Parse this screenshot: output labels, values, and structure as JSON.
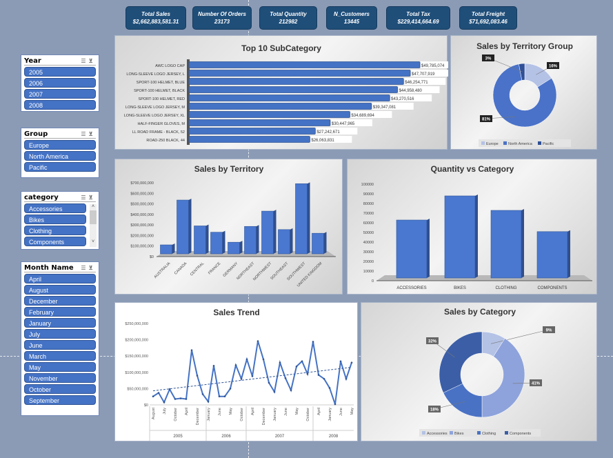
{
  "kpis": [
    {
      "label": "Total Sales",
      "value": "$2,662,883,581.31"
    },
    {
      "label": "Number Of Orders",
      "value": "23173"
    },
    {
      "label": "Total Quantity",
      "value": "212982"
    },
    {
      "label": "N_Customers",
      "value": "13445"
    },
    {
      "label": "Total Tax",
      "value": "$229,414,664.69"
    },
    {
      "label": "Total Freight",
      "value": "$71,692,083.46"
    }
  ],
  "slicers": {
    "year": {
      "title": "Year",
      "items": [
        "2005",
        "2006",
        "2007",
        "2008"
      ]
    },
    "group": {
      "title": "Group",
      "items": [
        "Europe",
        "North America",
        "Pacific"
      ]
    },
    "category": {
      "title": "category",
      "items": [
        "Accessories",
        "Bikes",
        "Clothing",
        "Components"
      ]
    },
    "month": {
      "title": "Month Name",
      "items": [
        "April",
        "August",
        "December",
        "February",
        "January",
        "July",
        "June",
        "March",
        "May",
        "November",
        "October",
        "September"
      ]
    }
  },
  "colors": {
    "bar": "#4472c4",
    "kpi": "#1f4e79"
  },
  "chart_data": [
    {
      "id": "top10",
      "type": "bar",
      "orientation": "horizontal",
      "title": "Top 10 SubCategory",
      "categories": [
        "AWC LOGO CAP",
        "LONG-SLEEVE LOGO JERSEY, L",
        "SPORT-100 HELMET, BLUE",
        "SPORT-100 HELMET, BLACK",
        "SPORT-100 HELMET, RED",
        "LONG-SLEEVE LOGO JERSEY, M",
        "LONG-SLEEVE LOGO JERSEY, XL",
        "HALF-FINGER GLOVES, M",
        "LL ROAD FRAME - BLACK, 52",
        "ROAD-250 BLACK, 44"
      ],
      "values": [
        49785074,
        47707919,
        46254771,
        44958480,
        43270516,
        39347081,
        34689694,
        30447965,
        27242671,
        26063831
      ],
      "data_labels": [
        "$49,785,074",
        "$47,707,919",
        "$46,254,771",
        "$44,958,480",
        "$43,270,516",
        "$39,347,081",
        "$34,689,694",
        "$30,447,965",
        "$27,242,671",
        "$26,063,831"
      ]
    },
    {
      "id": "group",
      "type": "pie",
      "donut": true,
      "title": "Sales by Territory Group",
      "categories": [
        "Europe",
        "North America",
        "Pacific"
      ],
      "values": [
        16,
        81,
        3
      ],
      "data_labels": [
        "16%",
        "81%",
        "3%"
      ],
      "colors": [
        "#b4c2e6",
        "#4a72c8",
        "#2f4f96"
      ],
      "legend": "bottom"
    },
    {
      "id": "territory",
      "type": "bar",
      "title": "Sales by Territory",
      "categories": [
        "AUSTRALIA",
        "CANADA",
        "CENTRAL",
        "FRANCE",
        "GERMANY",
        "NORTHEAST",
        "NORTHWEST",
        "SOUTHEAST",
        "SOUTHWEST",
        "UNITED KINGDOM"
      ],
      "values": [
        85000000,
        510000000,
        265000000,
        205000000,
        110000000,
        260000000,
        405000000,
        230000000,
        665000000,
        195000000
      ],
      "ylim": [
        0,
        700000000
      ],
      "yticks": [
        "$0",
        "$100,000,000",
        "$200,000,000",
        "$300,000,000",
        "$400,000,000",
        "$500,000,000",
        "$600,000,000",
        "$700,000,000"
      ]
    },
    {
      "id": "quantity",
      "type": "bar",
      "title": "Quantity vs Category",
      "categories": [
        "ACCESSORIES",
        "BIKES",
        "CLOTHING",
        "COMPONENTS"
      ],
      "values": [
        60000,
        85000,
        70000,
        48000
      ],
      "ylim": [
        0,
        100000
      ],
      "yticks": [
        "0",
        "10000",
        "20000",
        "30000",
        "40000",
        "50000",
        "60000",
        "70000",
        "80000",
        "90000",
        "100000"
      ]
    },
    {
      "id": "trend",
      "type": "line",
      "title": "Sales Trend",
      "trendline": "linear",
      "values": [
        26000000,
        37000000,
        8000000,
        48000000,
        18000000,
        20000000,
        18000000,
        168000000,
        90000000,
        33000000,
        10000000,
        120000000,
        26000000,
        26000000,
        50000000,
        122000000,
        80000000,
        140000000,
        88000000,
        196000000,
        140000000,
        68000000,
        40000000,
        130000000,
        82000000,
        45000000,
        118000000,
        134000000,
        95000000,
        194000000,
        92000000,
        80000000,
        52000000,
        2000000,
        134000000,
        80000000,
        130000000
      ],
      "month_labels": [
        "August",
        "July",
        "October",
        "April",
        "December",
        "January",
        "June",
        "May",
        "October",
        "April",
        "December",
        "January",
        "June",
        "May",
        "October",
        "April",
        "January",
        "June",
        "May"
      ],
      "years": [
        "2005",
        "2006",
        "2007",
        "2008"
      ],
      "ylim": [
        0,
        250000000
      ],
      "yticks": [
        "$0",
        "$50,000,000",
        "$100,000,000",
        "$150,000,000",
        "$200,000,000",
        "$250,000,000"
      ]
    },
    {
      "id": "category",
      "type": "pie",
      "donut": true,
      "title": "Sales by Category",
      "categories": [
        "Accessories",
        "Bikes",
        "Clothing",
        "Components"
      ],
      "values": [
        9,
        41,
        18,
        32
      ],
      "data_labels": [
        "9%",
        "41%",
        "18%",
        "32%"
      ],
      "colors": [
        "#b4c2e6",
        "#8ea3dc",
        "#4a72c4",
        "#3b5ea6"
      ],
      "legend": "bottom"
    }
  ]
}
